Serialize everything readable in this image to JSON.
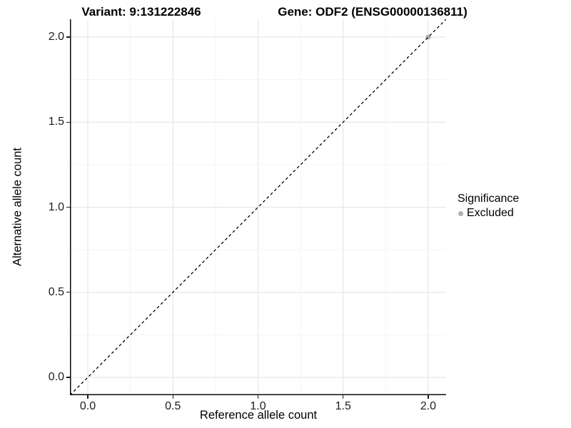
{
  "figure": {
    "titles": {
      "variant": "Variant: 9:131222846",
      "gene": "Gene: ODF2 (ENSG00000136811)"
    }
  },
  "axes": {
    "x": {
      "label": "Reference allele count",
      "tick_labels": [
        "0.0",
        "0.5",
        "1.0",
        "1.5",
        "2.0"
      ]
    },
    "y": {
      "label": "Alternative allele count",
      "tick_labels": [
        "0.0",
        "0.5",
        "1.0",
        "1.5",
        "2.0"
      ]
    }
  },
  "legend": {
    "title": "Significance",
    "items": [
      {
        "label": "Excluded",
        "color": "#b0b0b0"
      }
    ]
  },
  "chart_data": {
    "type": "scatter",
    "title": "Variant: 9:131222846 | Gene: ODF2 (ENSG00000136811)",
    "xlabel": "Reference allele count",
    "ylabel": "Alternative allele count",
    "xlim": [
      -0.105,
      2.105
    ],
    "ylim": [
      -0.105,
      2.105
    ],
    "x_ticks": [
      0,
      0.5,
      1,
      1.5,
      2
    ],
    "y_ticks": [
      0,
      0.5,
      1,
      1.5,
      2
    ],
    "x_minor_ticks": [
      0.25,
      0.75,
      1.25,
      1.75
    ],
    "y_minor_ticks": [
      0.25,
      0.75,
      1.25,
      1.75
    ],
    "grid": "major+minor",
    "legend_position": "right",
    "series": [
      {
        "name": "Excluded",
        "color": "#b0b0b0",
        "points": [
          {
            "x": 2.0,
            "y": 2.0
          }
        ]
      }
    ],
    "reference_line": {
      "equation": "y = x",
      "style": "dashed",
      "color": "#000000"
    }
  },
  "colors": {
    "grid_major": "#e4e4e4",
    "grid_minor": "#f1f1f1",
    "axis_line": "#0a0a0a",
    "tick_text": "#1c1c1c"
  }
}
